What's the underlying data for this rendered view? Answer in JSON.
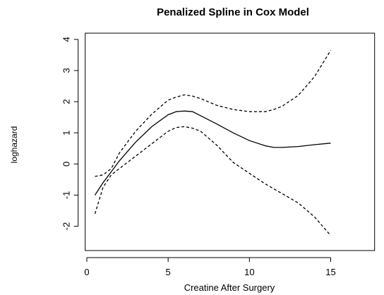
{
  "chart_data": {
    "type": "line",
    "title": "Penalized Spline in Cox Model",
    "x_label": "Creatine After Surgery",
    "y_label": "loghazard",
    "x": [
      0.5,
      1,
      1.5,
      2,
      3,
      4,
      5,
      5.5,
      6,
      6.5,
      7,
      8,
      9,
      10,
      11,
      11.5,
      12,
      13,
      14,
      15
    ],
    "series": [
      {
        "color": "#000000",
        "dash": false,
        "values": [
          -1.0,
          -0.6,
          -0.25,
          0.1,
          0.7,
          1.2,
          1.58,
          1.68,
          1.7,
          1.68,
          1.55,
          1.28,
          1.0,
          0.75,
          0.58,
          0.53,
          0.53,
          0.56,
          0.62,
          0.67
        ]
      },
      {
        "color": "#000000",
        "dash": true,
        "values": [
          -0.4,
          -0.35,
          -0.15,
          0.35,
          1.05,
          1.6,
          2.05,
          2.15,
          2.22,
          2.18,
          2.1,
          1.88,
          1.75,
          1.68,
          1.68,
          1.75,
          1.85,
          2.2,
          2.8,
          3.65
        ]
      },
      {
        "color": "#000000",
        "dash": true,
        "values": [
          -1.6,
          -0.75,
          -0.35,
          -0.15,
          0.25,
          0.65,
          1.05,
          1.17,
          1.2,
          1.15,
          1.05,
          0.6,
          0.05,
          -0.3,
          -0.65,
          -0.8,
          -0.95,
          -1.25,
          -1.7,
          -2.3
        ]
      }
    ],
    "xlim": [
      -0.1,
      17.7
    ],
    "ylim": [
      -2.78,
      4.2
    ],
    "xticks": [
      0,
      5,
      10,
      15
    ],
    "yticks": [
      -2,
      -1,
      0,
      1,
      2,
      3,
      4
    ]
  }
}
